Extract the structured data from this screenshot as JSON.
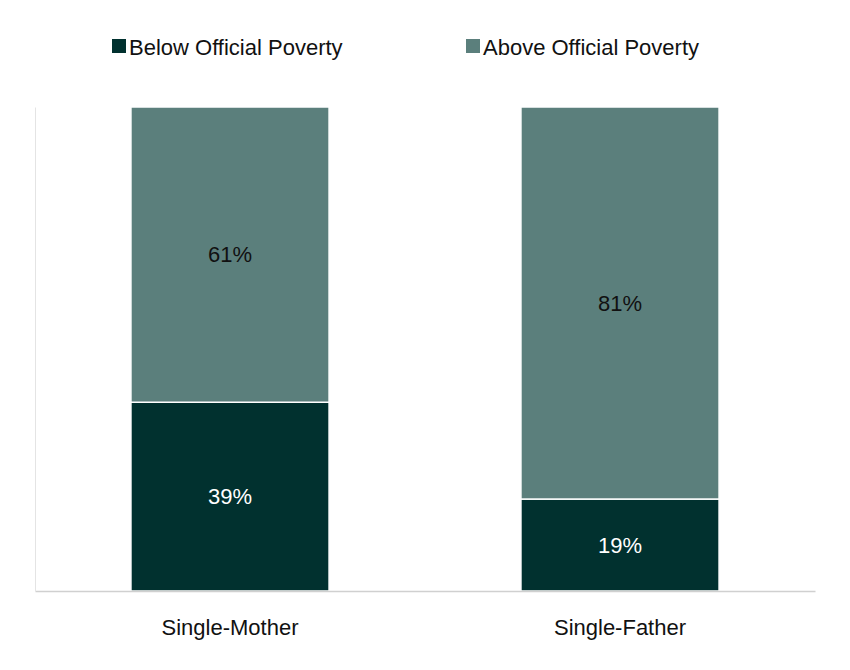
{
  "chart_data": {
    "type": "bar",
    "stacked": true,
    "data_labels": true,
    "legend": "top",
    "tick_labels": "x",
    "categories": [
      "Single-Mother",
      "Single-Father"
    ],
    "ylim": [
      0,
      100
    ],
    "series": [
      {
        "name": "Below Official Poverty",
        "color": "#01312f",
        "values": [
          39,
          19
        ],
        "value_labels": [
          "39%",
          "19%"
        ]
      },
      {
        "name": "Above Official Poverty",
        "color": "#5b7f7c",
        "values": [
          61,
          81
        ],
        "value_labels": [
          "61%",
          "81%"
        ]
      }
    ]
  }
}
